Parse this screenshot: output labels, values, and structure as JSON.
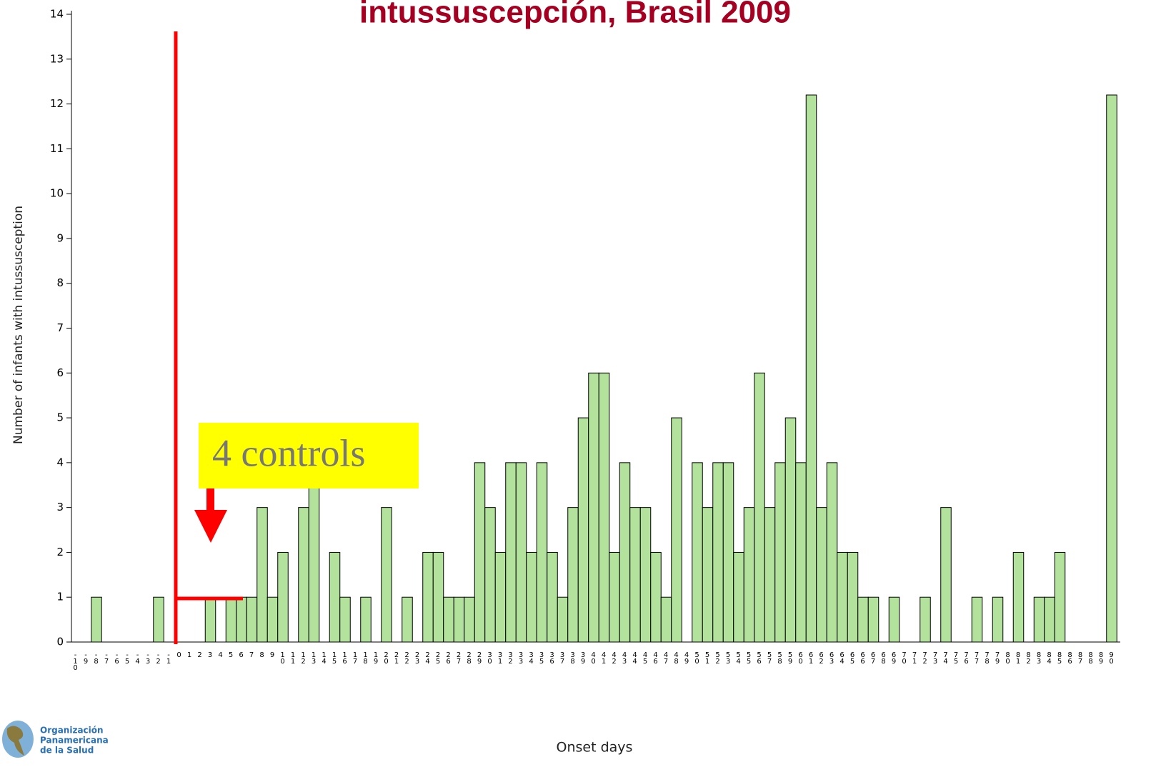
{
  "chart_data": {
    "type": "bar",
    "title": "intussuscepción, Brasil 2009",
    "y_label": "Number of infants with intussusception",
    "x_label": "Onset days",
    "annotation": "4 controls",
    "logo": [
      "Organización",
      "Panamericana",
      "de la Salud"
    ],
    "color": "#b2e29c",
    "x": [
      -10,
      -9,
      -8,
      -7,
      -6,
      -5,
      -4,
      -3,
      -2,
      -1,
      0,
      1,
      2,
      3,
      4,
      5,
      6,
      7,
      8,
      9,
      10,
      11,
      12,
      13,
      14,
      15,
      16,
      17,
      18,
      19,
      20,
      21,
      22,
      23,
      24,
      25,
      26,
      27,
      28,
      29,
      30,
      31,
      32,
      33,
      34,
      35,
      36,
      37,
      38,
      39,
      40,
      41,
      42,
      43,
      44,
      45,
      46,
      47,
      48,
      49,
      50,
      51,
      52,
      53,
      54,
      55,
      56,
      57,
      58,
      59,
      60,
      61,
      62,
      63,
      64,
      65,
      66,
      67,
      68,
      69,
      70,
      71,
      72,
      73,
      74,
      75,
      76,
      77,
      78,
      79,
      80,
      81,
      82,
      83,
      84,
      85,
      86,
      87,
      88,
      89,
      90
    ],
    "values": [
      0,
      0,
      1,
      0,
      0,
      0,
      0,
      0,
      1,
      0,
      0,
      0,
      0,
      1,
      0,
      1,
      1,
      1,
      3,
      1,
      2,
      0,
      3,
      4,
      0,
      2,
      1,
      0,
      1,
      0,
      3,
      0,
      1,
      0,
      2,
      2,
      1,
      1,
      1,
      4,
      3,
      2,
      4,
      4,
      2,
      4,
      2,
      1,
      3,
      5,
      6,
      6,
      2,
      4,
      3,
      3,
      2,
      1,
      5,
      0,
      4,
      3,
      4,
      4,
      2,
      3,
      6,
      3,
      4,
      5,
      4,
      12.2,
      3,
      4,
      2,
      2,
      1,
      1,
      0,
      1,
      0,
      0,
      1,
      0,
      3,
      0,
      0,
      1,
      0,
      1,
      0,
      2,
      0,
      1,
      1,
      2,
      0,
      0,
      0,
      0,
      12.2
    ],
    "xlim": [
      -10,
      90
    ],
    "ylim": [
      0,
      14
    ],
    "yticks": [
      0,
      1,
      2,
      3,
      4,
      5,
      6,
      7,
      8,
      9,
      10,
      11,
      12,
      13,
      14
    ]
  }
}
